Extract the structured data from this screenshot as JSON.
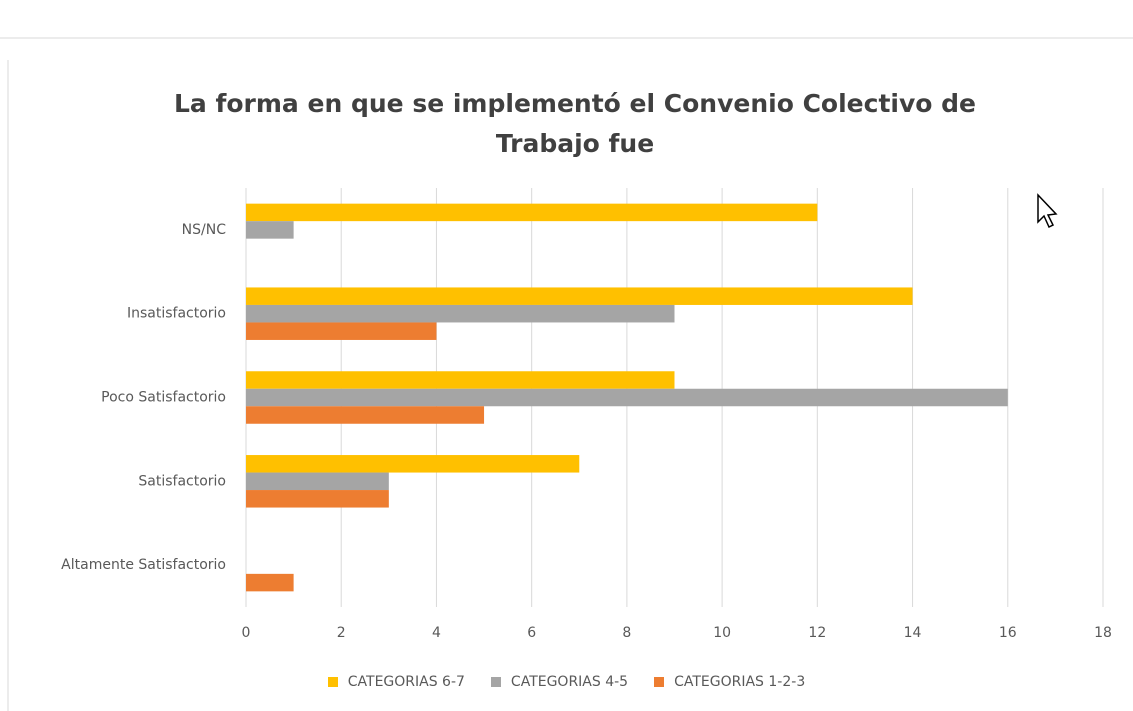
{
  "chart_data": {
    "type": "hbar",
    "title": "La forma en que se implementó el Convenio Colectivo de Trabajo fue",
    "categories": [
      "NS/NC",
      "Insatisfactorio",
      "Poco Satisfactorio",
      "Satisfactorio",
      "Altamente Satisfactorio"
    ],
    "series": [
      {
        "name": "CATEGORIAS 6-7",
        "color": "#ffc000",
        "values": [
          12,
          14,
          9,
          7,
          0
        ]
      },
      {
        "name": "CATEGORIAS 4-5",
        "color": "#a5a5a5",
        "values": [
          1,
          9,
          16,
          3,
          0
        ]
      },
      {
        "name": "CATEGORIAS 1-2-3",
        "color": "#ed7d31",
        "values": [
          0,
          4,
          5,
          3,
          1
        ]
      }
    ],
    "xlim": [
      0,
      18
    ],
    "xticks": [
      0,
      2,
      4,
      6,
      8,
      10,
      12,
      14,
      16,
      18
    ],
    "grid": true,
    "legend": "bottom"
  }
}
